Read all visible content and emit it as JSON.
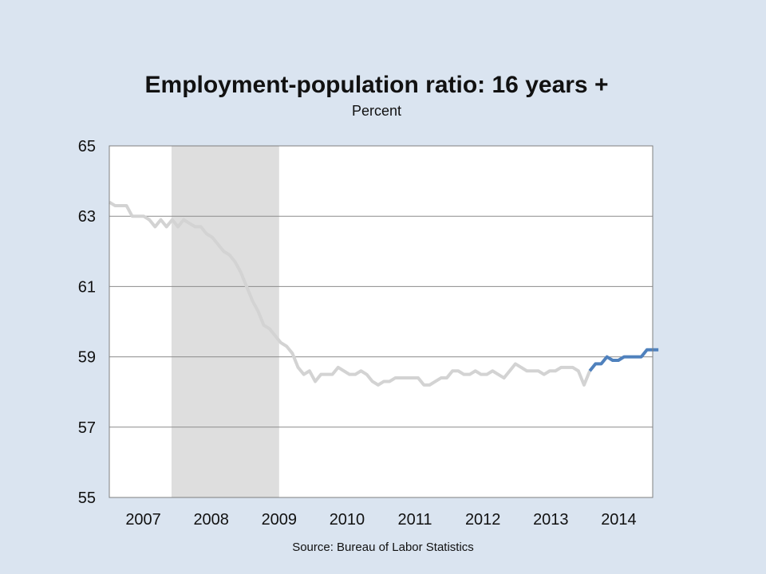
{
  "chart_data": {
    "type": "line",
    "title": "Employment-population ratio: 16 years +",
    "subtitle": "Percent",
    "source": "Source: Bureau of Labor Statistics",
    "xlabel": "",
    "ylabel": "",
    "ylim": [
      55,
      65
    ],
    "yticks": [
      "55",
      "57",
      "59",
      "61",
      "63",
      "65"
    ],
    "xticks": [
      "2007",
      "2008",
      "2009",
      "2010",
      "2011",
      "2012",
      "2013",
      "2014"
    ],
    "x_start": "2007-01",
    "x_end": "2014-12",
    "grid": true,
    "recession_shading": {
      "start": "2007-12",
      "end": "2009-06",
      "color": "#dedede"
    },
    "series": [
      {
        "color": "#d3d3d3",
        "start": "2007-01",
        "values": [
          63.4,
          63.3,
          63.3,
          63.3,
          63.0,
          63.0,
          63.0,
          62.9,
          62.7,
          62.9,
          62.7,
          62.9,
          62.7,
          62.9,
          62.8,
          62.7,
          62.7,
          62.5,
          62.4,
          62.2,
          62.0,
          61.9,
          61.7,
          61.4,
          61.0,
          60.6,
          60.3,
          59.9,
          59.8,
          59.6,
          59.4,
          59.3,
          59.1,
          58.7,
          58.5,
          58.6,
          58.3,
          58.5,
          58.5,
          58.5,
          58.7,
          58.6,
          58.5,
          58.5,
          58.6,
          58.5,
          58.3,
          58.2,
          58.3,
          58.3,
          58.4,
          58.4,
          58.4,
          58.4,
          58.4,
          58.2,
          58.2,
          58.3,
          58.4,
          58.4,
          58.6,
          58.6,
          58.5,
          58.5,
          58.6,
          58.5,
          58.5,
          58.6,
          58.5,
          58.4,
          58.6,
          58.8,
          58.7,
          58.6,
          58.6,
          58.6,
          58.5,
          58.6,
          58.6,
          58.7,
          58.7,
          58.7,
          58.6,
          58.2,
          58.6
        ]
      },
      {
        "color": "#4f81bd",
        "start": "2014-01",
        "values": [
          58.6,
          58.8,
          58.8,
          59.0,
          58.9,
          58.9,
          59.0,
          59.0,
          59.0,
          59.0,
          59.2,
          59.2,
          59.2
        ]
      }
    ]
  }
}
